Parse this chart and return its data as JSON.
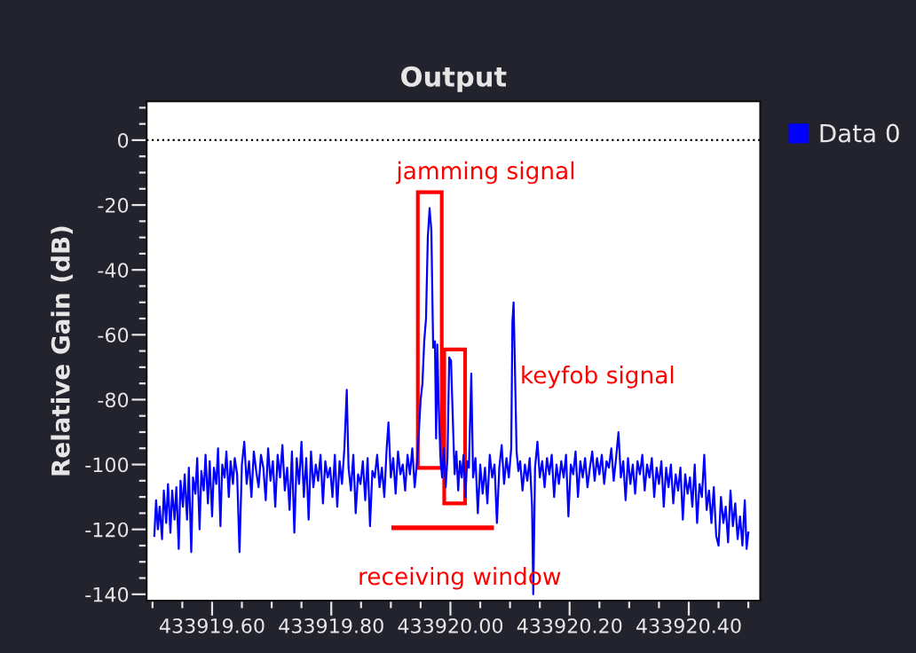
{
  "chart_data": {
    "type": "line",
    "title": "Output",
    "ylabel": "Relative Gain (dB)",
    "xlim": [
      433919.49,
      433920.52
    ],
    "ylim": [
      -142,
      12
    ],
    "xticks": [
      {
        "value": 433919.5,
        "label": null
      },
      {
        "value": 433919.55,
        "label": null
      },
      {
        "value": 433919.6,
        "label": "433919.60"
      },
      {
        "value": 433919.65,
        "label": null
      },
      {
        "value": 433919.7,
        "label": null
      },
      {
        "value": 433919.75,
        "label": null
      },
      {
        "value": 433919.8,
        "label": "433919.80"
      },
      {
        "value": 433919.85,
        "label": null
      },
      {
        "value": 433919.9,
        "label": null
      },
      {
        "value": 433919.95,
        "label": null
      },
      {
        "value": 433920.0,
        "label": "433920.00"
      },
      {
        "value": 433920.05,
        "label": null
      },
      {
        "value": 433920.1,
        "label": null
      },
      {
        "value": 433920.15,
        "label": null
      },
      {
        "value": 433920.2,
        "label": "433920.20"
      },
      {
        "value": 433920.25,
        "label": null
      },
      {
        "value": 433920.3,
        "label": null
      },
      {
        "value": 433920.35,
        "label": null
      },
      {
        "value": 433920.4,
        "label": "433920.40"
      },
      {
        "value": 433920.45,
        "label": null
      },
      {
        "value": 433920.5,
        "label": null
      }
    ],
    "yticks": [
      -140,
      {
        "value": -135,
        "label": null
      },
      {
        "value": -130,
        "label": null
      },
      {
        "value": -125,
        "label": null
      },
      -120,
      {
        "value": -115,
        "label": null
      },
      {
        "value": -110,
        "label": null
      },
      {
        "value": -105,
        "label": null
      },
      -100,
      {
        "value": -95,
        "label": null
      },
      {
        "value": -90,
        "label": null
      },
      {
        "value": -85,
        "label": null
      },
      -80,
      {
        "value": -75,
        "label": null
      },
      {
        "value": -70,
        "label": null
      },
      {
        "value": -65,
        "label": null
      },
      -60,
      {
        "value": -55,
        "label": null
      },
      {
        "value": -50,
        "label": null
      },
      {
        "value": -45,
        "label": null
      },
      -40,
      {
        "value": -35,
        "label": null
      },
      {
        "value": -30,
        "label": null
      },
      {
        "value": -25,
        "label": null
      },
      -20,
      {
        "value": -15,
        "label": null
      },
      {
        "value": -10,
        "label": null
      },
      {
        "value": -5,
        "label": null
      },
      0,
      {
        "value": 5,
        "label": null
      },
      {
        "value": 10,
        "label": null
      }
    ],
    "grid": false,
    "legend": "top right",
    "marker": "none",
    "line_style": "solid",
    "ref_lines": [
      {
        "axis": "y",
        "value": 0,
        "color": "#000000",
        "line_style": "dotted"
      }
    ],
    "annotations": [
      "jamming signal",
      "keyfob signal",
      "receiving window"
    ],
    "series": [
      {
        "name": "Data 0",
        "color": "#0000ff",
        "x": [
          433919.503,
          433919.506,
          433919.509,
          433919.512,
          433919.516,
          433919.519,
          433919.523,
          433919.526,
          433919.53,
          433919.533,
          433919.537,
          433919.54,
          433919.544,
          433919.547,
          433919.551,
          433919.554,
          433919.558,
          433919.561,
          433919.565,
          433919.568,
          433919.572,
          433919.575,
          433919.579,
          433919.582,
          433919.586,
          433919.589,
          433919.593,
          433919.596,
          433919.6,
          433919.603,
          433919.607,
          433919.61,
          433919.614,
          433919.617,
          433919.621,
          433919.624,
          433919.628,
          433919.631,
          433919.635,
          433919.638,
          433919.642,
          433919.646,
          433919.65,
          433919.654,
          433919.658,
          433919.662,
          433919.666,
          433919.67,
          433919.674,
          433919.678,
          433919.682,
          433919.686,
          433919.69,
          433919.694,
          433919.698,
          433919.702,
          433919.706,
          433919.71,
          433919.714,
          433919.718,
          433919.722,
          433919.726,
          433919.73,
          433919.734,
          433919.738,
          433919.742,
          433919.746,
          433919.75,
          433919.754,
          433919.758,
          433919.762,
          433919.766,
          433919.77,
          433919.774,
          433919.778,
          433919.782,
          433919.786,
          433919.79,
          433919.794,
          433919.798,
          433919.802,
          433919.806,
          433919.81,
          433919.814,
          433919.818,
          433919.822,
          433919.826,
          433919.829,
          433919.833,
          433919.837,
          433919.841,
          433919.845,
          433919.849,
          433919.853,
          433919.857,
          433919.861,
          433919.865,
          433919.869,
          433919.873,
          433919.877,
          433919.881,
          433919.885,
          433919.889,
          433919.893,
          433919.896,
          433919.9,
          433919.904,
          433919.908,
          433919.912,
          433919.916,
          433919.92,
          433919.924,
          433919.928,
          433919.932,
          433919.936,
          433919.94,
          433919.944,
          433919.947,
          433919.95,
          433919.953,
          433919.956,
          433919.959,
          433919.962,
          433919.965,
          433919.968,
          433919.971,
          433919.974,
          433919.976,
          433919.978,
          433919.98,
          433919.983,
          433919.986,
          433919.989,
          433919.992,
          433919.995,
          433919.998,
          433920.001,
          433920.004,
          433920.007,
          433920.01,
          433920.013,
          433920.016,
          433920.019,
          433920.022,
          433920.025,
          433920.028,
          433920.031,
          433920.035,
          433920.038,
          433920.042,
          433920.046,
          433920.05,
          433920.054,
          433920.058,
          433920.062,
          433920.066,
          433920.07,
          433920.074,
          433920.078,
          433920.082,
          433920.086,
          433920.09,
          433920.094,
          433920.098,
          433920.102,
          433920.104,
          433920.106,
          433920.108,
          433920.111,
          433920.114,
          433920.117,
          433920.121,
          433920.125,
          433920.129,
          433920.133,
          433920.137,
          433920.139,
          433920.142,
          433920.146,
          433920.15,
          433920.154,
          433920.158,
          433920.162,
          433920.166,
          433920.17,
          433920.174,
          433920.178,
          433920.182,
          433920.186,
          433920.19,
          433920.194,
          433920.198,
          433920.202,
          433920.206,
          433920.21,
          433920.214,
          433920.218,
          433920.222,
          433920.226,
          433920.23,
          433920.234,
          433920.238,
          433920.242,
          433920.246,
          433920.25,
          433920.254,
          433920.258,
          433920.262,
          433920.266,
          433920.27,
          433920.274,
          433920.278,
          433920.282,
          433920.286,
          433920.29,
          433920.294,
          433920.298,
          433920.302,
          433920.306,
          433920.31,
          433920.314,
          433920.318,
          433920.322,
          433920.326,
          433920.33,
          433920.334,
          433920.338,
          433920.342,
          433920.346,
          433920.35,
          433920.354,
          433920.358,
          433920.362,
          433920.366,
          433920.37,
          433920.374,
          433920.378,
          433920.382,
          433920.386,
          433920.39,
          433920.394,
          433920.398,
          433920.402,
          433920.406,
          433920.41,
          433920.414,
          433920.418,
          433920.422,
          433920.426,
          433920.43,
          433920.434,
          433920.438,
          433920.442,
          433920.446,
          433920.45,
          433920.454,
          433920.458,
          433920.462,
          433920.466,
          433920.47,
          433920.474,
          433920.478,
          433920.482,
          433920.486,
          433920.49,
          433920.494,
          433920.497,
          433920.5
        ],
        "values": [
          -122,
          -111,
          -120,
          -113,
          -123,
          -108,
          -118,
          -106,
          -121,
          -108,
          -117,
          -107,
          -126,
          -105,
          -113,
          -103,
          -117,
          -101,
          -127,
          -104,
          -109,
          -98,
          -120,
          -102,
          -108,
          -97,
          -112,
          -99,
          -116,
          -101,
          -106,
          -95,
          -119,
          -100,
          -104,
          -96,
          -110,
          -99,
          -106,
          -98,
          -103,
          -127,
          -100,
          -93,
          -106,
          -99,
          -110,
          -96,
          -102,
          -107,
          -97,
          -101,
          -111,
          -95,
          -105,
          -99,
          -113,
          -97,
          -104,
          -94,
          -108,
          -101,
          -114,
          -96,
          -121,
          -98,
          -106,
          -93,
          -110,
          -98,
          -117,
          -96,
          -107,
          -100,
          -105,
          -97,
          -112,
          -99,
          -104,
          -101,
          -110,
          -97,
          -113,
          -99,
          -106,
          -95,
          -77,
          -101,
          -108,
          -97,
          -115,
          -103,
          -106,
          -99,
          -111,
          -98,
          -119,
          -102,
          -104,
          -97,
          -107,
          -101,
          -110,
          -95,
          -87,
          -104,
          -98,
          -109,
          -96,
          -103,
          -100,
          -108,
          -97,
          -103,
          -95,
          -107,
          -99,
          -90,
          -80,
          -75,
          -62,
          -55,
          -30,
          -21,
          -28,
          -64,
          -62,
          -92,
          -63,
          -80,
          -97,
          -104,
          -95,
          -107,
          -98,
          -67,
          -68,
          -86,
          -103,
          -96,
          -108,
          -99,
          -104,
          -97,
          -110,
          -99,
          -101,
          -72,
          -104,
          -98,
          -115,
          -100,
          -109,
          -101,
          -112,
          -97,
          -104,
          -100,
          -118,
          -101,
          -94,
          -106,
          -98,
          -104,
          -95,
          -56,
          -50,
          -68,
          -96,
          -102,
          -99,
          -108,
          -100,
          -105,
          -98,
          -113,
          -140,
          -101,
          -93,
          -104,
          -99,
          -107,
          -98,
          -103,
          -97,
          -110,
          -100,
          -106,
          -99,
          -104,
          -97,
          -116,
          -100,
          -103,
          -96,
          -110,
          -99,
          -104,
          -98,
          -107,
          -101,
          -96,
          -105,
          -98,
          -103,
          -97,
          -106,
          -99,
          -101,
          -95,
          -105,
          -98,
          -90,
          -104,
          -99,
          -111,
          -98,
          -106,
          -100,
          -109,
          -99,
          -103,
          -97,
          -108,
          -100,
          -104,
          -98,
          -110,
          -101,
          -106,
          -99,
          -113,
          -101,
          -107,
          -100,
          -112,
          -103,
          -108,
          -101,
          -117,
          -103,
          -109,
          -104,
          -113,
          -100,
          -118,
          -106,
          -110,
          -97,
          -114,
          -108,
          -118,
          -107,
          -122,
          -125,
          -110,
          -118,
          -113,
          -124,
          -108,
          -119,
          -112,
          -123,
          -116,
          -125,
          -111,
          -126,
          -121
        ]
      }
    ]
  }
}
